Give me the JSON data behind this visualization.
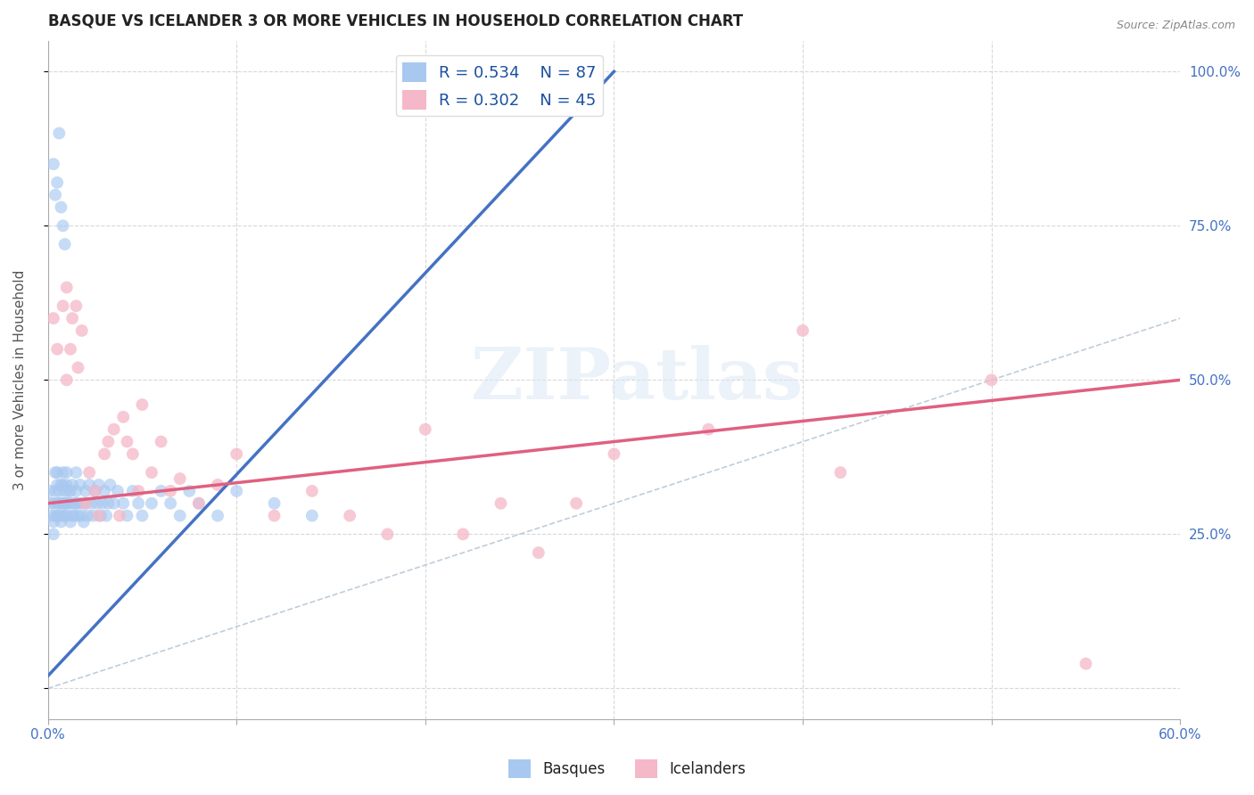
{
  "title": "BASQUE VS ICELANDER 3 OR MORE VEHICLES IN HOUSEHOLD CORRELATION CHART",
  "source": "Source: ZipAtlas.com",
  "ylabel": "3 or more Vehicles in Household",
  "xlim": [
    0.0,
    0.6
  ],
  "ylim": [
    -0.05,
    1.05
  ],
  "xticks": [
    0.0,
    0.1,
    0.2,
    0.3,
    0.4,
    0.5,
    0.6
  ],
  "xticklabels": [
    "0.0%",
    "",
    "",
    "",
    "",
    "",
    "60.0%"
  ],
  "ytick_positions": [
    0.0,
    0.25,
    0.5,
    0.75,
    1.0
  ],
  "ytick_labels_right": [
    "",
    "25.0%",
    "50.0%",
    "75.0%",
    "100.0%"
  ],
  "basque_color": "#a8c8f0",
  "icelander_color": "#f4b8c8",
  "basque_line_color": "#4472c4",
  "icelander_line_color": "#e06080",
  "diagonal_color": "#b8c8d8",
  "R_basque": 0.534,
  "N_basque": 87,
  "R_icelander": 0.302,
  "N_icelander": 45,
  "legend_label_basque": "Basques",
  "legend_label_icelander": "Icelanders",
  "watermark_text": "ZIPatlas",
  "background_color": "#ffffff",
  "grid_color": "#d8d8d8",
  "basque_line_x0": 0.0,
  "basque_line_y0": 0.02,
  "basque_line_x1": 0.3,
  "basque_line_y1": 1.0,
  "icelander_line_x0": 0.0,
  "icelander_line_y0": 0.3,
  "icelander_line_x1": 0.6,
  "icelander_line_y1": 0.5,
  "basque_x": [
    0.001,
    0.002,
    0.002,
    0.003,
    0.003,
    0.003,
    0.004,
    0.004,
    0.004,
    0.005,
    0.005,
    0.005,
    0.005,
    0.006,
    0.006,
    0.006,
    0.007,
    0.007,
    0.007,
    0.008,
    0.008,
    0.008,
    0.008,
    0.009,
    0.009,
    0.009,
    0.01,
    0.01,
    0.01,
    0.01,
    0.011,
    0.011,
    0.012,
    0.012,
    0.012,
    0.013,
    0.013,
    0.014,
    0.014,
    0.015,
    0.015,
    0.015,
    0.016,
    0.016,
    0.017,
    0.018,
    0.018,
    0.019,
    0.02,
    0.02,
    0.021,
    0.022,
    0.023,
    0.024,
    0.025,
    0.026,
    0.027,
    0.028,
    0.029,
    0.03,
    0.031,
    0.032,
    0.033,
    0.035,
    0.037,
    0.04,
    0.042,
    0.045,
    0.048,
    0.05,
    0.055,
    0.06,
    0.065,
    0.07,
    0.075,
    0.08,
    0.09,
    0.1,
    0.12,
    0.14,
    0.003,
    0.004,
    0.005,
    0.006,
    0.007,
    0.008,
    0.009
  ],
  "basque_y": [
    0.32,
    0.28,
    0.3,
    0.25,
    0.27,
    0.3,
    0.28,
    0.32,
    0.35,
    0.3,
    0.28,
    0.33,
    0.35,
    0.28,
    0.32,
    0.3,
    0.27,
    0.3,
    0.33,
    0.3,
    0.33,
    0.28,
    0.35,
    0.3,
    0.32,
    0.28,
    0.3,
    0.33,
    0.35,
    0.28,
    0.32,
    0.3,
    0.27,
    0.3,
    0.32,
    0.28,
    0.33,
    0.3,
    0.28,
    0.35,
    0.3,
    0.32,
    0.28,
    0.3,
    0.33,
    0.28,
    0.3,
    0.27,
    0.32,
    0.3,
    0.28,
    0.33,
    0.3,
    0.28,
    0.32,
    0.3,
    0.33,
    0.28,
    0.3,
    0.32,
    0.28,
    0.3,
    0.33,
    0.3,
    0.32,
    0.3,
    0.28,
    0.32,
    0.3,
    0.28,
    0.3,
    0.32,
    0.3,
    0.28,
    0.32,
    0.3,
    0.28,
    0.32,
    0.3,
    0.28,
    0.85,
    0.8,
    0.82,
    0.9,
    0.78,
    0.75,
    0.72
  ],
  "icelander_x": [
    0.003,
    0.005,
    0.008,
    0.01,
    0.01,
    0.012,
    0.013,
    0.015,
    0.016,
    0.018,
    0.02,
    0.022,
    0.025,
    0.027,
    0.03,
    0.032,
    0.035,
    0.038,
    0.04,
    0.042,
    0.045,
    0.048,
    0.05,
    0.055,
    0.06,
    0.065,
    0.07,
    0.08,
    0.09,
    0.1,
    0.12,
    0.14,
    0.16,
    0.18,
    0.2,
    0.22,
    0.24,
    0.26,
    0.28,
    0.3,
    0.35,
    0.4,
    0.42,
    0.5,
    0.55
  ],
  "icelander_y": [
    0.6,
    0.55,
    0.62,
    0.5,
    0.65,
    0.55,
    0.6,
    0.62,
    0.52,
    0.58,
    0.3,
    0.35,
    0.32,
    0.28,
    0.38,
    0.4,
    0.42,
    0.28,
    0.44,
    0.4,
    0.38,
    0.32,
    0.46,
    0.35,
    0.4,
    0.32,
    0.34,
    0.3,
    0.33,
    0.38,
    0.28,
    0.32,
    0.28,
    0.25,
    0.42,
    0.25,
    0.3,
    0.22,
    0.3,
    0.38,
    0.42,
    0.58,
    0.35,
    0.5,
    0.04
  ]
}
